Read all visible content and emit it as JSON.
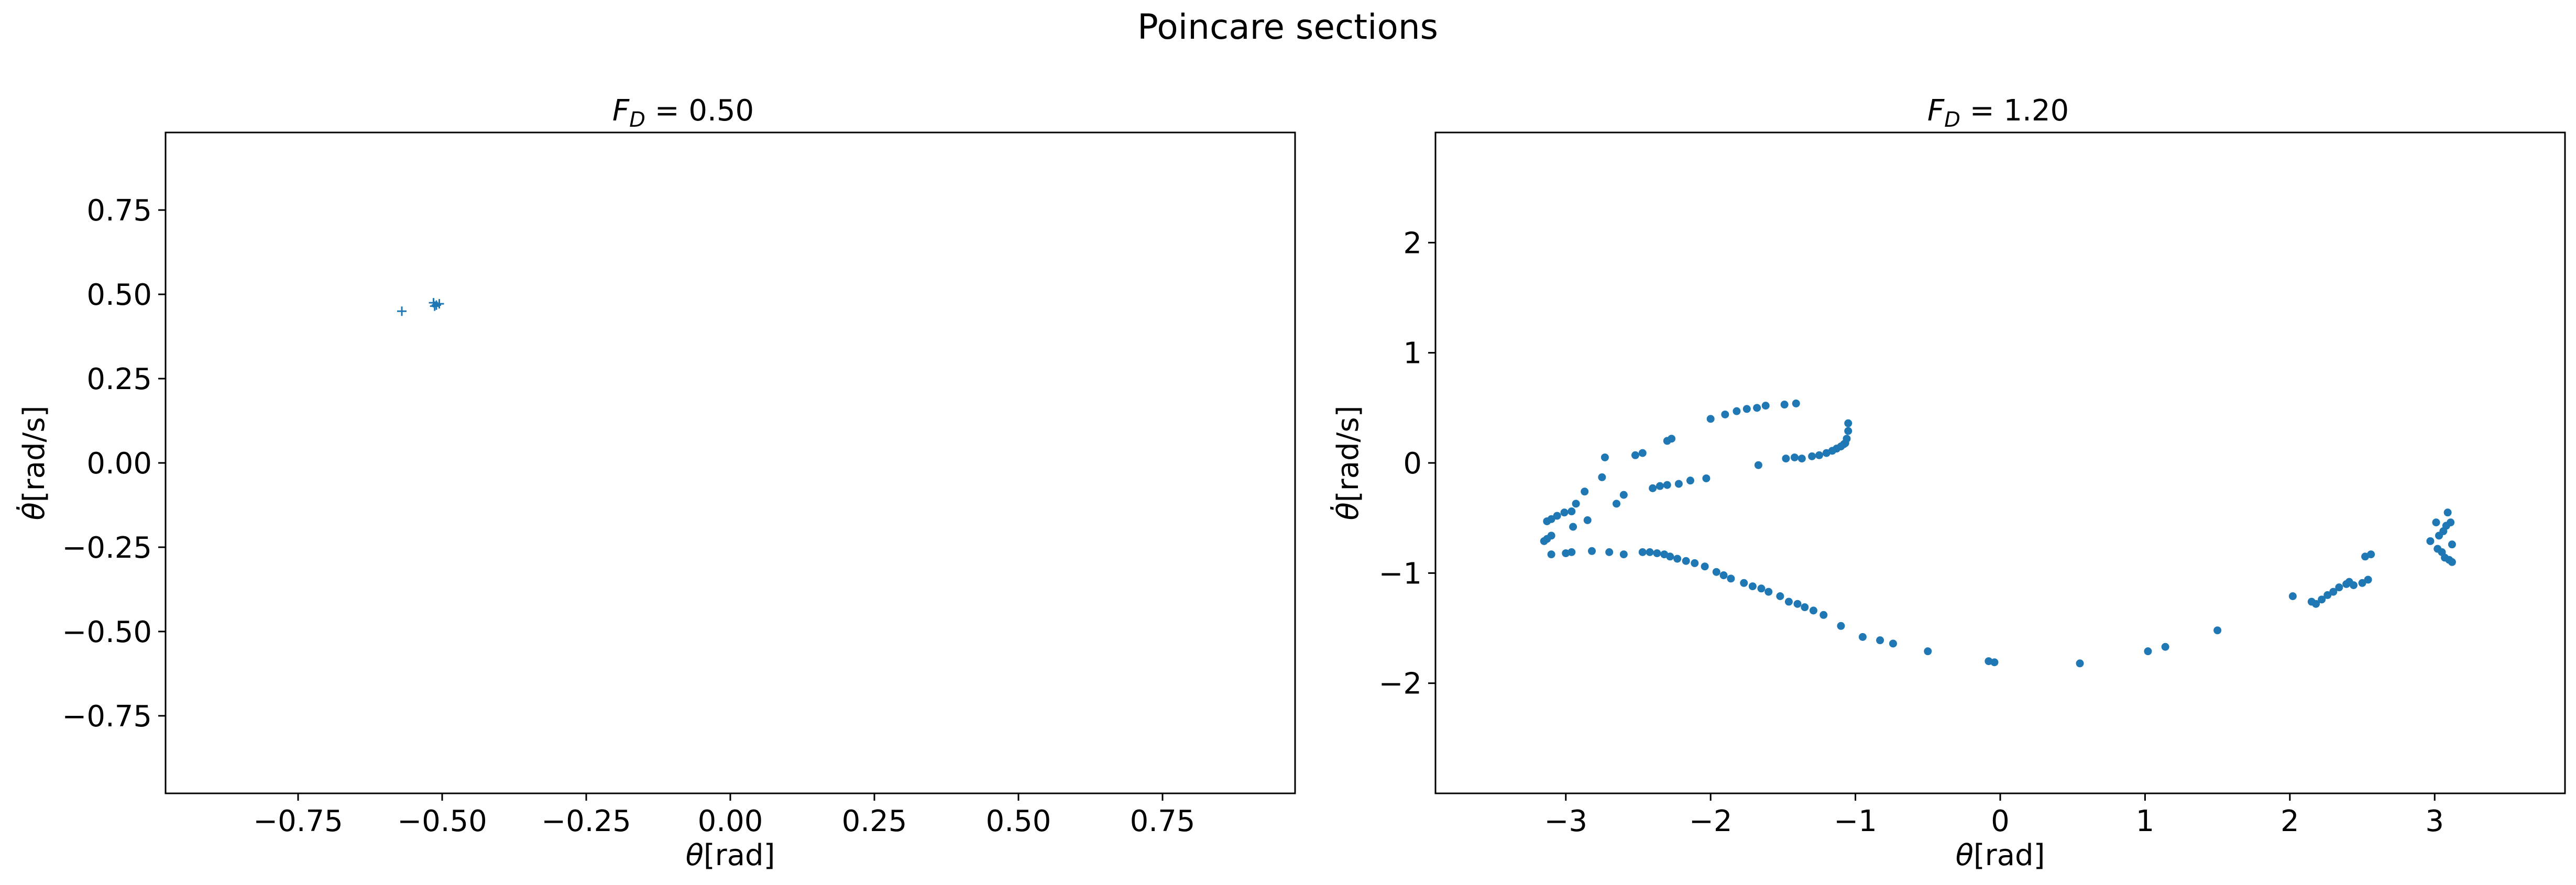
{
  "figure_title": "Poincare sections",
  "colors": {
    "marker": "#1f77b4",
    "axes": "#000000",
    "background": "#ffffff"
  },
  "chart_data": [
    {
      "type": "scatter",
      "title": "F_D = 0.50",
      "title_symbol": "F",
      "title_subscript": "D",
      "title_rest": " = 0.50",
      "xlabel_symbol": "θ",
      "xlabel_unit": "[rad]",
      "ylabel_symbol": "θ̇",
      "ylabel_unit": "[rad/s]",
      "xlim": [
        -0.98,
        0.98
      ],
      "ylim": [
        -0.98,
        0.98
      ],
      "xticks": [
        -0.75,
        -0.5,
        -0.25,
        0.0,
        0.25,
        0.5,
        0.75
      ],
      "xtick_labels": [
        "−0.75",
        "−0.50",
        "−0.25",
        "0.00",
        "0.25",
        "0.50",
        "0.75"
      ],
      "yticks": [
        0.75,
        0.5,
        0.25,
        0.0,
        -0.25,
        -0.5,
        -0.75
      ],
      "ytick_labels": [
        "0.75",
        "0.50",
        "0.25",
        "0.00",
        "−0.25",
        "−0.50",
        "−0.75"
      ],
      "marker": "plus",
      "grid": false,
      "points": [
        [
          -0.57,
          0.45
        ],
        [
          -0.515,
          0.475
        ],
        [
          -0.51,
          0.468
        ],
        [
          -0.505,
          0.472
        ],
        [
          -0.513,
          0.465
        ]
      ]
    },
    {
      "type": "scatter",
      "title": "F_D = 1.20",
      "title_symbol": "F",
      "title_subscript": "D",
      "title_rest": " = 1.20",
      "xlabel_symbol": "θ",
      "xlabel_unit": "[rad]",
      "ylabel_symbol": "θ̇",
      "ylabel_unit": "[rad/s]",
      "xlim": [
        -3.9,
        3.9
      ],
      "ylim": [
        -3.0,
        3.0
      ],
      "xticks": [
        -3,
        -2,
        -1,
        0,
        1,
        2,
        3
      ],
      "xtick_labels": [
        "−3",
        "−2",
        "−1",
        "0",
        "1",
        "2",
        "3"
      ],
      "yticks": [
        2,
        1,
        0,
        -1,
        -2
      ],
      "ytick_labels": [
        "2",
        "1",
        "0",
        "−1",
        "−2"
      ],
      "marker": "dot",
      "grid": false,
      "points": [
        [
          -2.73,
          0.05
        ],
        [
          -2.52,
          0.07
        ],
        [
          -2.47,
          0.09
        ],
        [
          -2.3,
          0.2
        ],
        [
          -2.27,
          0.22
        ],
        [
          -2.0,
          0.4
        ],
        [
          -1.9,
          0.44
        ],
        [
          -1.82,
          0.47
        ],
        [
          -1.75,
          0.49
        ],
        [
          -1.68,
          0.5
        ],
        [
          -1.62,
          0.52
        ],
        [
          -1.49,
          0.53
        ],
        [
          -1.41,
          0.54
        ],
        [
          -1.67,
          -0.02
        ],
        [
          -1.05,
          0.36
        ],
        [
          -1.05,
          0.29
        ],
        [
          -1.06,
          0.22
        ],
        [
          -1.07,
          0.18
        ],
        [
          -1.08,
          0.17
        ],
        [
          -1.1,
          0.15
        ],
        [
          -1.13,
          0.13
        ],
        [
          -1.16,
          0.11
        ],
        [
          -1.2,
          0.09
        ],
        [
          -1.25,
          0.07
        ],
        [
          -1.3,
          0.06
        ],
        [
          -1.37,
          0.04
        ],
        [
          -1.42,
          0.05
        ],
        [
          -1.48,
          0.04
        ],
        [
          -2.03,
          -0.14
        ],
        [
          -2.14,
          -0.16
        ],
        [
          -2.22,
          -0.19
        ],
        [
          -2.3,
          -0.2
        ],
        [
          -2.35,
          -0.21
        ],
        [
          -2.4,
          -0.23
        ],
        [
          -2.6,
          -0.29
        ],
        [
          -2.65,
          -0.37
        ],
        [
          -2.75,
          -0.13
        ],
        [
          -2.87,
          -0.26
        ],
        [
          -2.93,
          -0.37
        ],
        [
          -2.96,
          -0.44
        ],
        [
          -3.01,
          -0.45
        ],
        [
          -3.06,
          -0.48
        ],
        [
          -3.1,
          -0.51
        ],
        [
          -3.13,
          -0.53
        ],
        [
          -2.85,
          -0.52
        ],
        [
          -2.95,
          -0.58
        ],
        [
          -3.1,
          -0.66
        ],
        [
          -3.13,
          -0.69
        ],
        [
          -3.15,
          -0.71
        ],
        [
          -2.82,
          -0.8
        ],
        [
          -2.96,
          -0.81
        ],
        [
          -3.0,
          -0.82
        ],
        [
          -3.1,
          -0.83
        ],
        [
          -2.7,
          -0.81
        ],
        [
          -2.6,
          -0.83
        ],
        [
          -2.47,
          -0.81
        ],
        [
          -2.42,
          -0.81
        ],
        [
          -2.37,
          -0.82
        ],
        [
          -2.32,
          -0.83
        ],
        [
          -2.28,
          -0.85
        ],
        [
          -2.23,
          -0.87
        ],
        [
          -2.17,
          -0.89
        ],
        [
          -2.11,
          -0.91
        ],
        [
          -2.04,
          -0.94
        ],
        [
          -1.96,
          -0.99
        ],
        [
          -1.91,
          -1.02
        ],
        [
          -1.86,
          -1.05
        ],
        [
          -1.77,
          -1.09
        ],
        [
          -1.71,
          -1.12
        ],
        [
          -1.65,
          -1.14
        ],
        [
          -1.6,
          -1.17
        ],
        [
          -1.52,
          -1.21
        ],
        [
          -1.46,
          -1.26
        ],
        [
          -1.4,
          -1.28
        ],
        [
          -1.35,
          -1.31
        ],
        [
          -1.29,
          -1.34
        ],
        [
          -1.22,
          -1.38
        ],
        [
          -1.1,
          -1.48
        ],
        [
          -0.95,
          -1.58
        ],
        [
          -0.83,
          -1.61
        ],
        [
          -0.74,
          -1.64
        ],
        [
          -0.5,
          -1.71
        ],
        [
          -0.08,
          -1.8
        ],
        [
          -0.04,
          -1.81
        ],
        [
          0.55,
          -1.82
        ],
        [
          1.02,
          -1.71
        ],
        [
          1.14,
          -1.67
        ],
        [
          1.5,
          -1.52
        ],
        [
          2.02,
          -1.21
        ],
        [
          2.15,
          -1.26
        ],
        [
          2.18,
          -1.28
        ],
        [
          2.22,
          -1.24
        ],
        [
          2.26,
          -1.2
        ],
        [
          2.3,
          -1.17
        ],
        [
          2.34,
          -1.13
        ],
        [
          2.39,
          -1.1
        ],
        [
          2.41,
          -1.08
        ],
        [
          2.44,
          -1.11
        ],
        [
          2.5,
          -1.09
        ],
        [
          2.54,
          -1.06
        ],
        [
          2.52,
          -0.85
        ],
        [
          2.56,
          -0.83
        ],
        [
          2.97,
          -0.71
        ],
        [
          3.03,
          -0.66
        ],
        [
          3.06,
          -0.62
        ],
        [
          3.08,
          -0.57
        ],
        [
          3.11,
          -0.54
        ],
        [
          3.09,
          -0.45
        ],
        [
          3.01,
          -0.54
        ],
        [
          3.12,
          -0.74
        ],
        [
          3.05,
          -0.81
        ],
        [
          3.07,
          -0.86
        ],
        [
          3.1,
          -0.88
        ],
        [
          3.12,
          -0.9
        ],
        [
          3.02,
          -0.78
        ]
      ]
    }
  ]
}
